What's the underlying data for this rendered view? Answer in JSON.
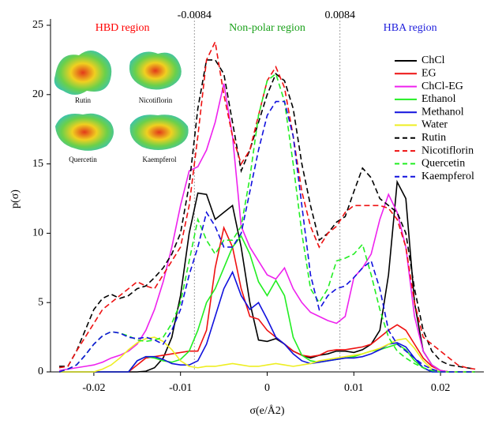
{
  "chart_data": {
    "type": "line",
    "x_label": "σ(e/Å2)",
    "y_label": "p(σ)",
    "xlim": [
      -0.025,
      0.025
    ],
    "ylim": [
      0,
      25
    ],
    "xticks": [
      -0.02,
      -0.01,
      0,
      0.01,
      0.02
    ],
    "yticks": [
      0,
      5,
      10,
      15,
      20,
      25
    ],
    "vlines": [
      -0.0084,
      0.0084
    ],
    "regions": [
      {
        "label": "HBD region",
        "color": "#ff0000"
      },
      {
        "label": "Non-polar region",
        "color": "#19a019"
      },
      {
        "label": "HBA region",
        "color": "#1e1edc"
      }
    ],
    "images": [
      "Rutin",
      "Nicotiflorin",
      "Quercetin",
      "Kaempferol"
    ],
    "legend": "upper right",
    "x": [
      -0.024,
      -0.023,
      -0.022,
      -0.021,
      -0.02,
      -0.019,
      -0.018,
      -0.017,
      -0.016,
      -0.015,
      -0.014,
      -0.013,
      -0.012,
      -0.011,
      -0.01,
      -0.009,
      -0.008,
      -0.007,
      -0.006,
      -0.005,
      -0.004,
      -0.003,
      -0.002,
      -0.001,
      0,
      0.001,
      0.002,
      0.003,
      0.004,
      0.005,
      0.006,
      0.007,
      0.008,
      0.009,
      0.01,
      0.011,
      0.012,
      0.013,
      0.014,
      0.015,
      0.016,
      0.017,
      0.018,
      0.019,
      0.02,
      0.021,
      0.022,
      0.023,
      0.024
    ],
    "series": [
      {
        "name": "ChCl",
        "color": "#000000",
        "linestyle": "solid",
        "values": [
          0,
          0,
          0,
          0,
          0,
          0,
          0,
          0,
          0,
          0,
          0.05,
          0.3,
          1,
          2.5,
          5.5,
          10,
          12.9,
          12.8,
          11,
          11.5,
          12,
          9,
          5,
          2.3,
          2.2,
          2.4,
          2,
          1.5,
          1.2,
          1,
          1.2,
          1.3,
          1.5,
          1.5,
          1.4,
          1.6,
          2,
          3,
          7,
          13.7,
          12.5,
          5,
          1.5,
          0.5,
          0.1,
          0,
          0,
          0,
          0
        ]
      },
      {
        "name": "EG",
        "color": "#ee1111",
        "linestyle": "solid",
        "values": [
          0,
          0,
          0,
          0,
          0,
          0,
          0,
          0,
          0,
          0.5,
          1,
          1.1,
          1.2,
          1.3,
          1.4,
          1.5,
          1.5,
          3,
          7.5,
          10.4,
          9,
          6,
          4,
          3.8,
          3,
          2.5,
          2,
          1.5,
          1.2,
          1.1,
          1.2,
          1.5,
          1.6,
          1.6,
          1.7,
          1.8,
          2,
          2.5,
          3,
          3.4,
          3,
          2,
          1,
          0.4,
          0.1,
          0,
          0,
          0,
          0
        ]
      },
      {
        "name": "ChCl-EG",
        "color": "#ee22ee",
        "linestyle": "solid",
        "values": [
          0.1,
          0.2,
          0.3,
          0.4,
          0.5,
          0.7,
          1,
          1.2,
          1.5,
          2,
          3,
          4.5,
          6.5,
          9,
          12,
          14.5,
          14.8,
          16,
          18,
          20.8,
          17,
          10.5,
          9,
          8,
          7,
          6.7,
          7.5,
          6,
          5,
          4.3,
          4,
          3.7,
          3.5,
          4,
          6.8,
          7.5,
          8.5,
          11,
          12.8,
          11.5,
          9,
          4,
          1.5,
          0.5,
          0.1,
          0,
          0,
          0,
          0
        ]
      },
      {
        "name": "Ethanol",
        "color": "#22ee22",
        "linestyle": "solid",
        "values": [
          0,
          0,
          0,
          0,
          0,
          0,
          0,
          0,
          0,
          0.8,
          1.1,
          1,
          0.8,
          0.7,
          0.9,
          1.5,
          3,
          5,
          6,
          7.5,
          9,
          9.8,
          8.5,
          6.5,
          5.5,
          6.6,
          5.5,
          2.5,
          1.2,
          0.8,
          0.7,
          0.8,
          0.9,
          1,
          1.1,
          1.3,
          1.5,
          1.6,
          1.8,
          2,
          1.6,
          0.8,
          0.3,
          0,
          0,
          0,
          0,
          0,
          0
        ]
      },
      {
        "name": "Methanol",
        "color": "#1111dd",
        "linestyle": "solid",
        "values": [
          0,
          0,
          0,
          0,
          0,
          0,
          0,
          0,
          0,
          0.8,
          1.1,
          1.1,
          0.9,
          0.6,
          0.5,
          0.5,
          0.8,
          2,
          4,
          6,
          7.2,
          5.5,
          4.5,
          5,
          3.8,
          2.5,
          2,
          1.3,
          0.8,
          0.6,
          0.7,
          0.8,
          0.9,
          1,
          1,
          1.1,
          1.3,
          1.6,
          2,
          2.1,
          1.8,
          1,
          0.3,
          0,
          0,
          0,
          0,
          0,
          0
        ]
      },
      {
        "name": "Water",
        "color": "#eeee22",
        "linestyle": "solid",
        "values": [
          0,
          0,
          0,
          0,
          0,
          0.2,
          0.5,
          1,
          1.6,
          2.1,
          2.4,
          2.5,
          2.2,
          1.6,
          0.8,
          0.4,
          0.3,
          0.4,
          0.4,
          0.5,
          0.6,
          0.5,
          0.4,
          0.4,
          0.5,
          0.6,
          0.5,
          0.4,
          0.5,
          0.6,
          0.8,
          0.9,
          1,
          1.1,
          1.2,
          1.3,
          1.5,
          1.7,
          2,
          2.3,
          2.4,
          1.7,
          0.8,
          0.2,
          0,
          0,
          0,
          0,
          0
        ]
      },
      {
        "name": "Rutin",
        "color": "#000000",
        "linestyle": "dashed",
        "values": [
          0.4,
          0.4,
          1.5,
          3,
          4.5,
          5.3,
          5.6,
          5.3,
          5.5,
          6,
          6.2,
          6.8,
          7.5,
          8.5,
          10,
          13.5,
          19,
          22.5,
          22.5,
          21.5,
          18,
          14.5,
          16,
          18,
          20,
          21.5,
          21,
          19,
          15,
          12,
          9.5,
          10,
          10.8,
          11.2,
          13,
          14.7,
          14,
          12.5,
          12,
          11.5,
          10,
          6,
          3,
          1.5,
          0.8,
          0.5,
          0.4,
          0.3,
          0.2
        ]
      },
      {
        "name": "Nicotiflorin",
        "color": "#ee1111",
        "linestyle": "dashed",
        "values": [
          0.3,
          0.4,
          1.5,
          2.5,
          3.5,
          4.5,
          5,
          5.5,
          6,
          6.5,
          6.2,
          6,
          7,
          8,
          9,
          12,
          17,
          22.5,
          23.8,
          20,
          17,
          15,
          16,
          18.5,
          21,
          22,
          20.5,
          17,
          13,
          10.5,
          9,
          10,
          10.5,
          11.5,
          12,
          12,
          12,
          12,
          11.8,
          11,
          9,
          5,
          2.5,
          2,
          1.5,
          1,
          0.5,
          0.3,
          0.2
        ]
      },
      {
        "name": "Quercetin",
        "color": "#22ee22",
        "linestyle": "dashed",
        "values": [
          0,
          0.2,
          0.5,
          1.2,
          2,
          2.6,
          2.9,
          2.8,
          2.6,
          2.3,
          2.2,
          2.3,
          2.5,
          3.5,
          5,
          8,
          11,
          9.5,
          8.5,
          9.5,
          9.5,
          10.5,
          14,
          18.5,
          21,
          21.5,
          19.5,
          15,
          10,
          6,
          5,
          6,
          8,
          8.2,
          8.5,
          9.2,
          7,
          4.5,
          2.5,
          1.5,
          1,
          0.6,
          0.3,
          0.1,
          0,
          0,
          0,
          0,
          0
        ]
      },
      {
        "name": "Kaempferol",
        "color": "#1111dd",
        "linestyle": "dashed",
        "values": [
          0,
          0.2,
          0.5,
          1.2,
          2,
          2.6,
          2.9,
          2.8,
          2.5,
          2.4,
          2.5,
          2.3,
          2,
          3,
          4.5,
          7,
          9,
          11.5,
          10.5,
          9,
          9,
          10,
          13,
          16,
          18.5,
          19.5,
          19.5,
          17,
          12,
          7,
          4.5,
          5.5,
          6,
          6.2,
          6.8,
          7.5,
          8,
          6,
          3,
          2,
          1.5,
          1,
          0.5,
          0.2,
          0,
          0,
          0,
          0,
          0
        ]
      }
    ]
  }
}
